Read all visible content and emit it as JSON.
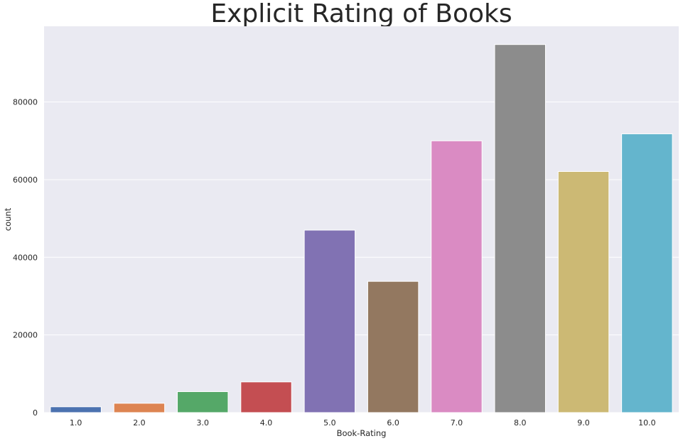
{
  "chart_data": {
    "type": "bar",
    "title": "Explicit Rating of Books",
    "xlabel": "Book-Rating",
    "ylabel": "count",
    "categories": [
      "1.0",
      "2.0",
      "3.0",
      "4.0",
      "5.0",
      "6.0",
      "7.0",
      "8.0",
      "9.0",
      "10.0"
    ],
    "values": [
      1500,
      2400,
      5400,
      7900,
      47000,
      33800,
      70000,
      94800,
      62100,
      71800
    ],
    "colors": [
      "#4c72b0",
      "#dd8452",
      "#55a868",
      "#c44e52",
      "#8172b3",
      "#937860",
      "#da8bc3",
      "#8c8c8c",
      "#ccb974",
      "#64b5cd"
    ],
    "yticks": [
      0,
      20000,
      40000,
      60000,
      80000
    ],
    "ylim": [
      0,
      99500
    ],
    "grid": true,
    "background": "#eaeaf2"
  }
}
